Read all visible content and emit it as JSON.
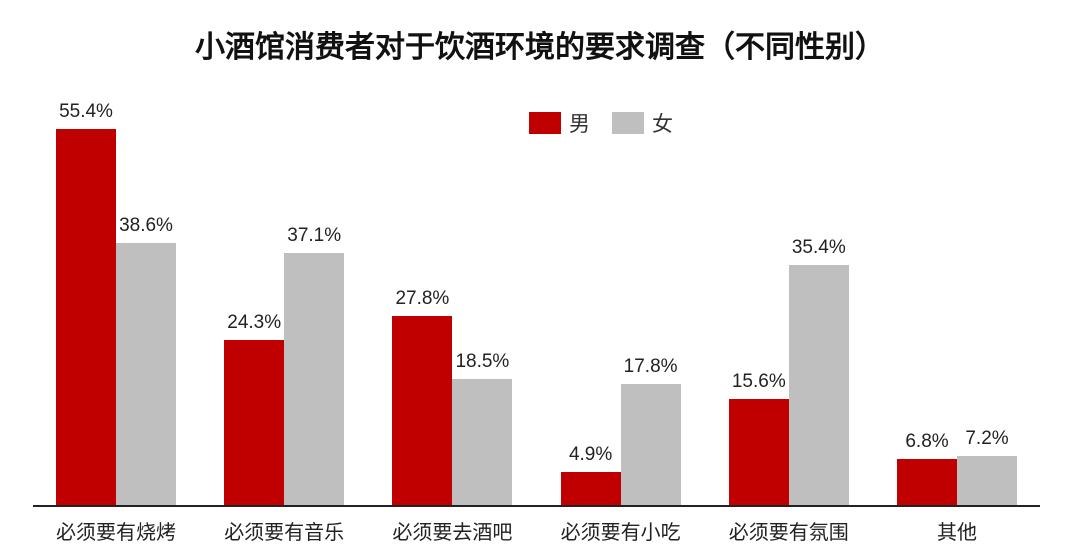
{
  "title": "小酒馆消费者对于饮酒环境的要求调查（不同性别）",
  "legend": [
    {
      "name": "男",
      "color": "#C00000"
    },
    {
      "name": "女",
      "color": "#BFBFBF"
    }
  ],
  "chart_data": {
    "type": "bar",
    "title": "小酒馆消费者对于饮酒环境的要求调查（不同性别）",
    "xlabel": "",
    "ylabel": "",
    "ylim": [
      0,
      60
    ],
    "grid": false,
    "legend_position": "top",
    "categories": [
      "必须要有烧烤",
      "必须要有音乐",
      "必须要去酒吧",
      "必须要有小吃",
      "必须要有氛围",
      "其他"
    ],
    "series": [
      {
        "name": "男",
        "color": "#C00000",
        "values": [
          55.4,
          24.3,
          27.8,
          4.9,
          15.6,
          6.8
        ],
        "labels": [
          "55.4%",
          "24.3%",
          "27.8%",
          "4.9%",
          "15.6%",
          "6.8%"
        ]
      },
      {
        "name": "女",
        "color": "#BFBFBF",
        "values": [
          38.6,
          37.1,
          18.5,
          17.8,
          35.4,
          7.2
        ],
        "labels": [
          "38.6%",
          "37.1%",
          "18.5%",
          "17.8%",
          "35.4%",
          "7.2%"
        ]
      }
    ]
  }
}
